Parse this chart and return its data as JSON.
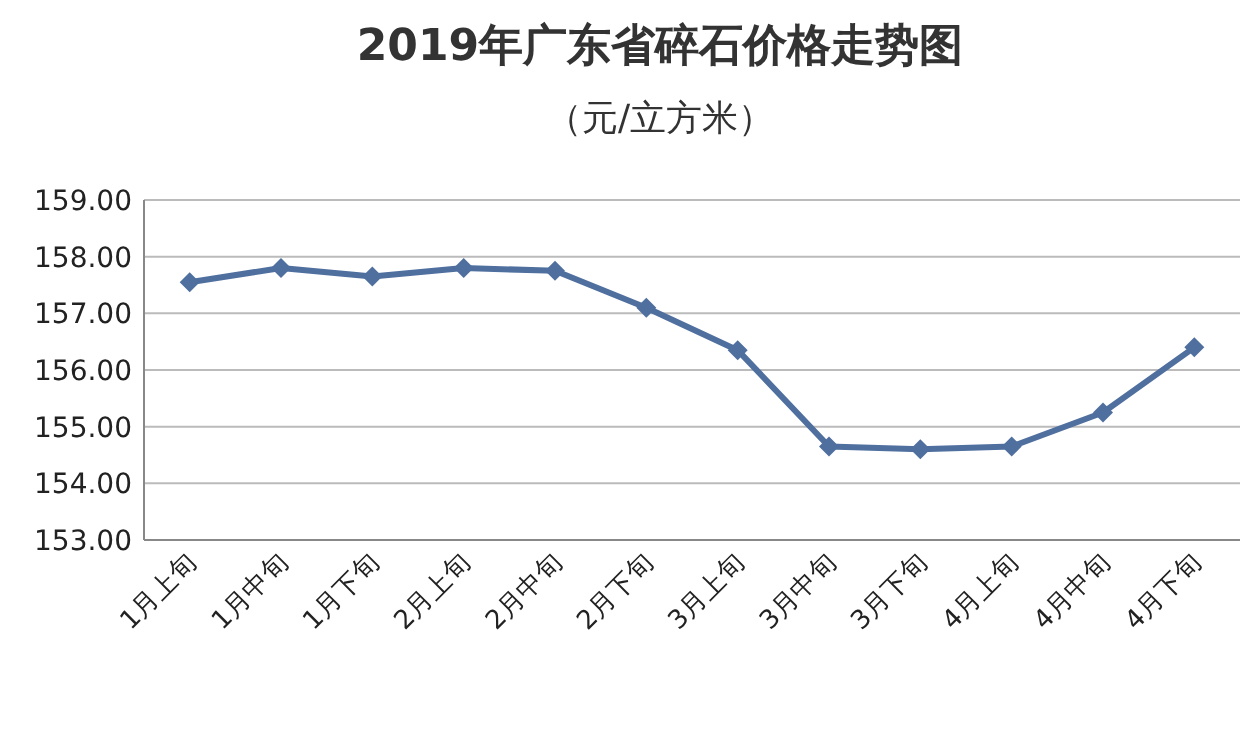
{
  "chart_data": {
    "type": "line",
    "title": "2019年广东省碎石价格走势图",
    "subtitle": "（元/立方米）",
    "categories": [
      "1月上旬",
      "1月中旬",
      "1月下旬",
      "2月上旬",
      "2月中旬",
      "2月下旬",
      "3月上旬",
      "3月中旬",
      "3月下旬",
      "4月上旬",
      "4月中旬",
      "4月下旬"
    ],
    "series": [
      {
        "color": "#4f6f9f",
        "values": [
          157.55,
          157.8,
          157.65,
          157.8,
          157.75,
          157.1,
          156.35,
          154.65,
          154.6,
          154.65,
          155.25,
          156.4
        ]
      }
    ],
    "ylim": [
      153,
      159
    ],
    "yticks": [
      {
        "value": 153,
        "label": "153.00"
      },
      {
        "value": 154,
        "label": "154.00"
      },
      {
        "value": 155,
        "label": "155.00"
      },
      {
        "value": 156,
        "label": "156.00"
      },
      {
        "value": 157,
        "label": "157.00"
      },
      {
        "value": 158,
        "label": "158.00"
      },
      {
        "value": 159,
        "label": "159.00"
      }
    ],
    "grid": "y",
    "marker": "diamond",
    "line_style": "solid"
  }
}
